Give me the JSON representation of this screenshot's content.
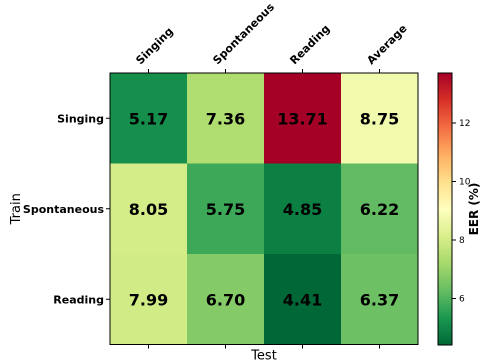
{
  "chart_data": {
    "type": "heatmap",
    "title": "",
    "xlabel": "Test",
    "ylabel": "Train",
    "x_categories": [
      "Singing",
      "Spontaneous",
      "Reading",
      "Average"
    ],
    "y_categories": [
      "Singing",
      "Spontaneous",
      "Reading"
    ],
    "values": [
      [
        5.17,
        7.36,
        13.71,
        8.75
      ],
      [
        8.05,
        5.75,
        4.85,
        6.22
      ],
      [
        7.99,
        6.7,
        4.41,
        6.37
      ]
    ],
    "cell_labels": [
      [
        "5.17",
        "7.36",
        "13.71",
        "8.75"
      ],
      [
        "8.05",
        "5.75",
        "4.85",
        "6.22"
      ],
      [
        "7.99",
        "6.70",
        "4.41",
        "6.37"
      ]
    ],
    "colorbar": {
      "label": "EER (%)",
      "vmin": 4.41,
      "vmax": 13.71,
      "ticks": [
        6,
        8,
        10,
        12
      ],
      "tick_labels": [
        "6",
        "8",
        "10",
        "12"
      ],
      "colormap": "RdYlGn_r"
    },
    "x_tick_position": "top",
    "grid": false
  }
}
